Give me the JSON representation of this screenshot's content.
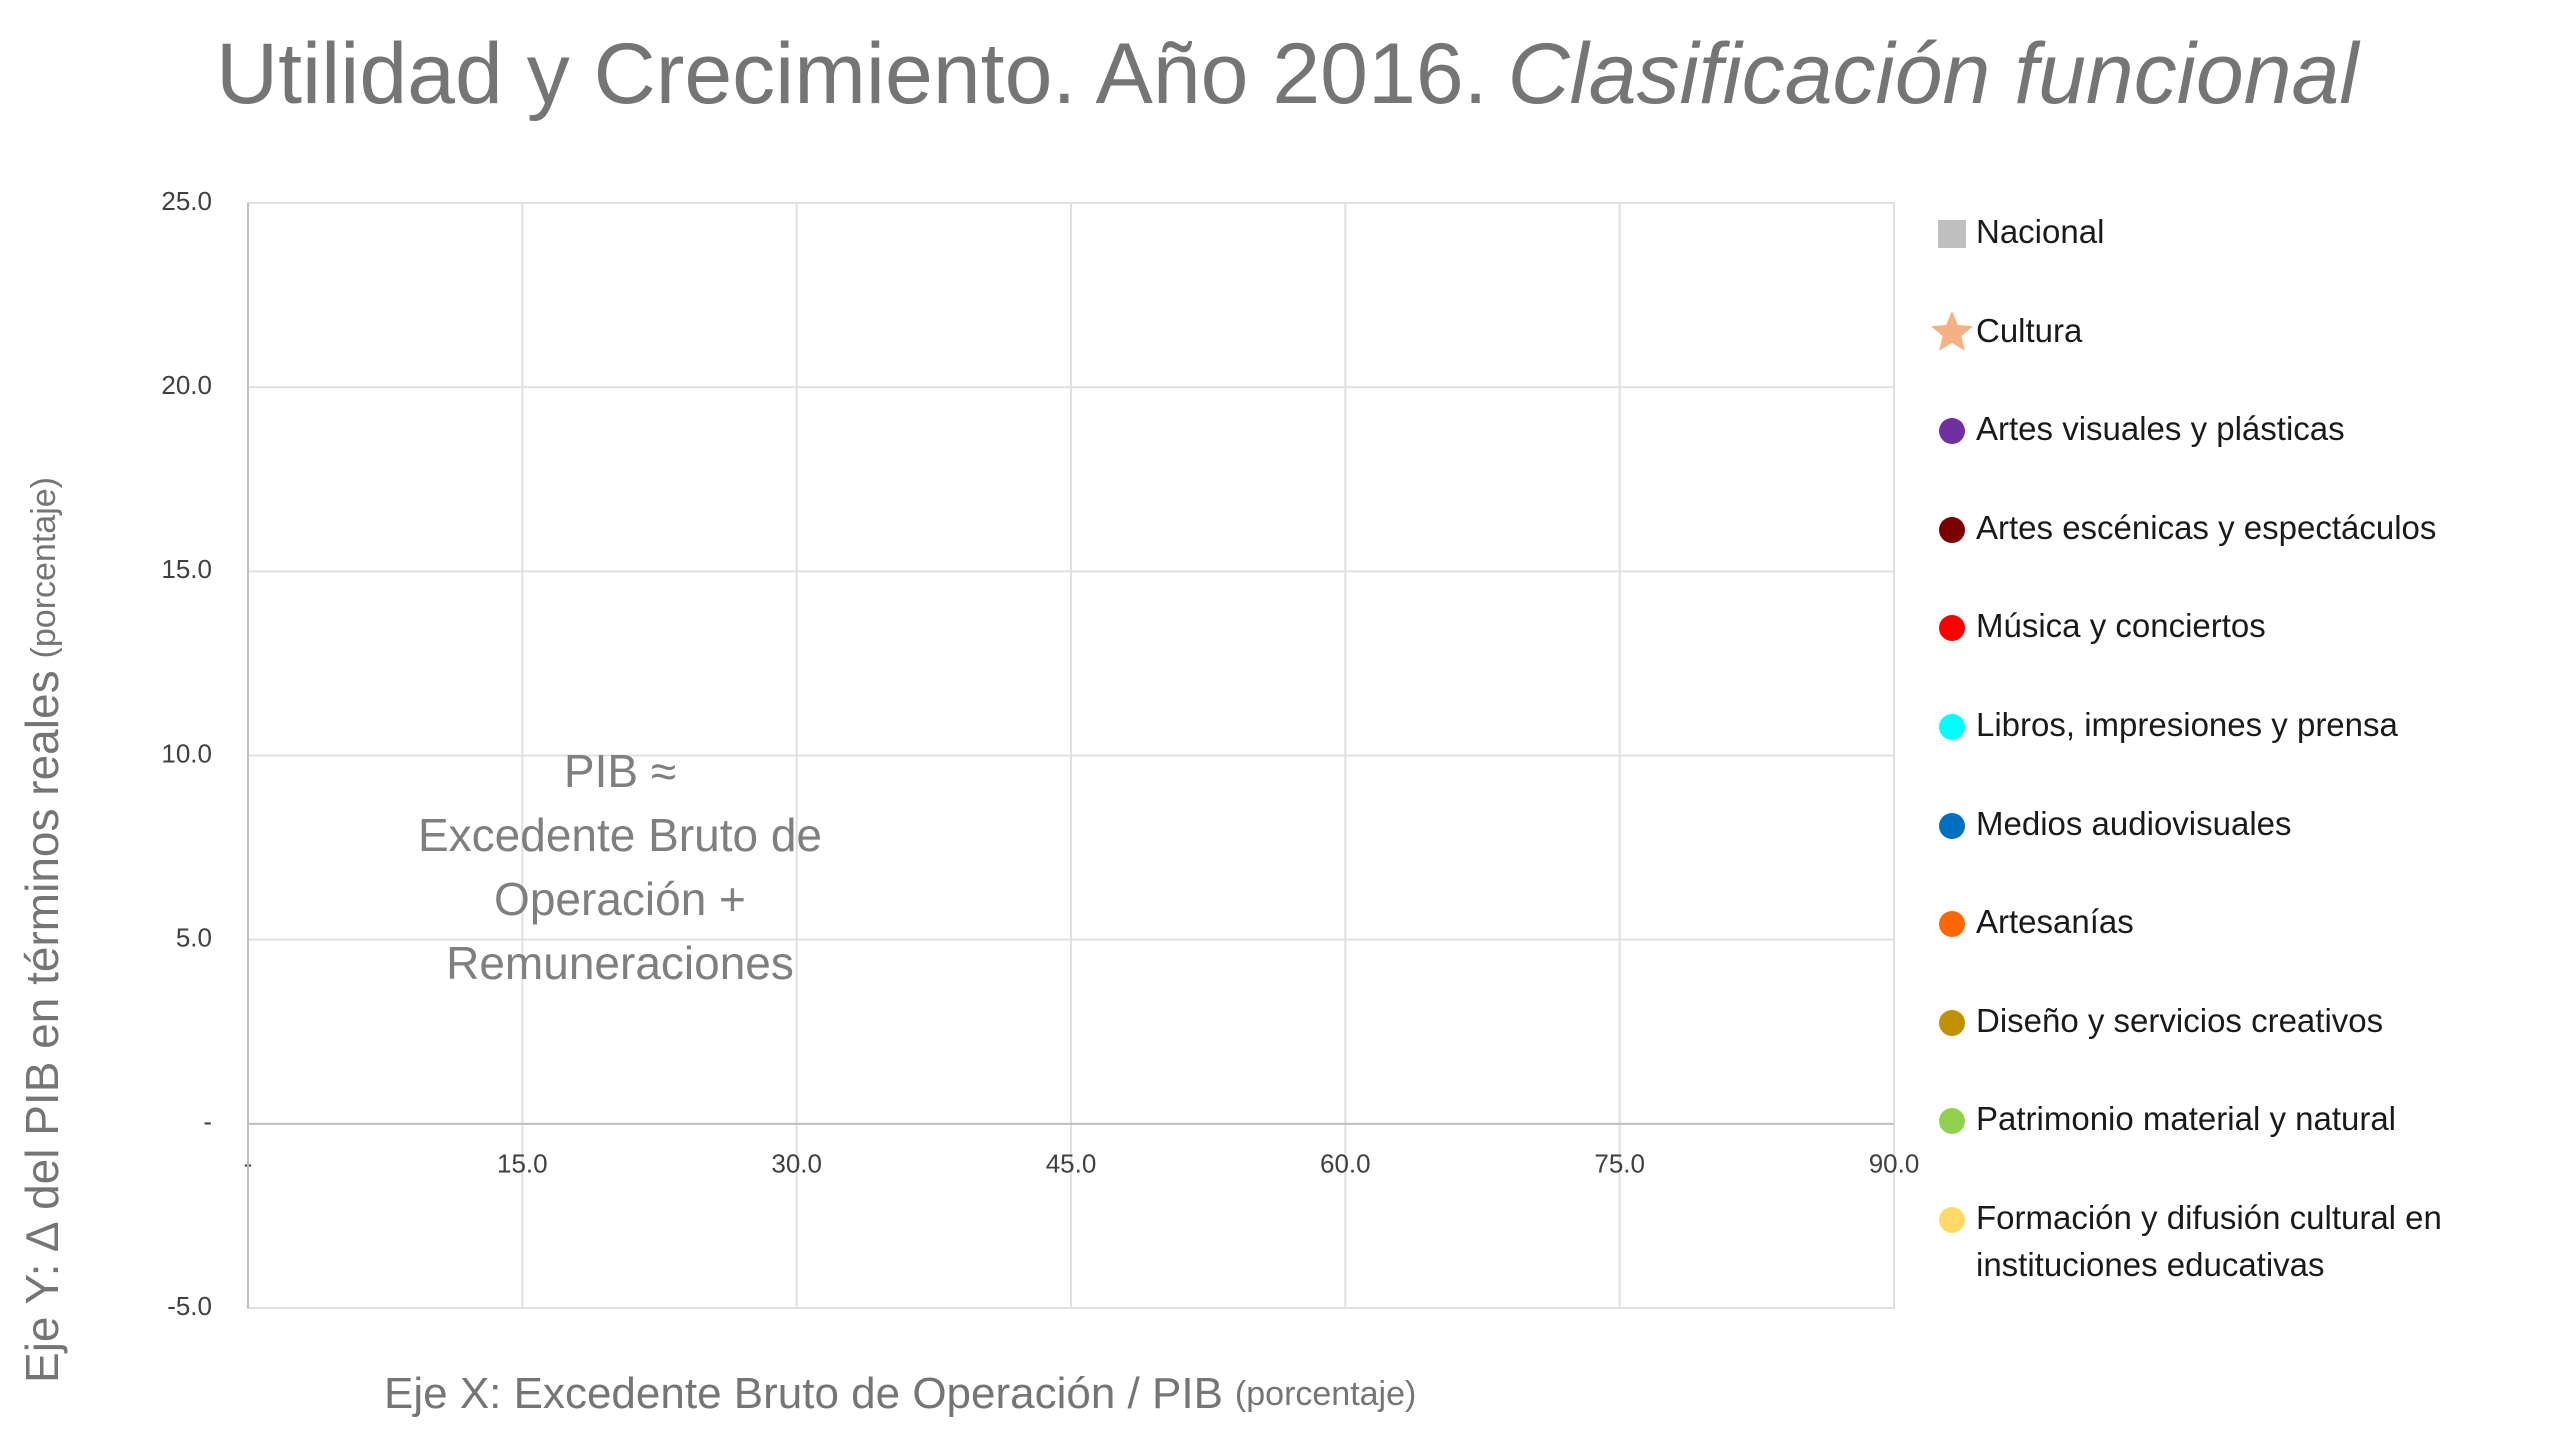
{
  "chart_data": {
    "type": "scatter",
    "title": "Utilidad y Crecimiento. Año 2016.",
    "subtitle": "Clasificación funcional",
    "y_label": "Eje Y: ∆ del PIB en términos reales",
    "y_label_unit": "(porcentaje)",
    "x_label": "Eje X: Excedente Bruto de Operación / PIB",
    "x_label_unit": "(porcentaje)",
    "annotation": [
      "PIB ≈",
      "Excedente Bruto de",
      "Operación +",
      "Remuneraciones"
    ],
    "xlim": [
      0,
      90
    ],
    "ylim": [
      -5,
      25
    ],
    "xticks": [
      {
        "value": 0,
        "label": "-"
      },
      {
        "value": 15,
        "label": "15.0"
      },
      {
        "value": 30,
        "label": "30.0"
      },
      {
        "value": 45,
        "label": "45.0"
      },
      {
        "value": 60,
        "label": "60.0"
      },
      {
        "value": 75,
        "label": "75.0"
      },
      {
        "value": 90,
        "label": "90.0"
      }
    ],
    "yticks": [
      {
        "value": -5,
        "label": "-5.0"
      },
      {
        "value": 0,
        "label": "-"
      },
      {
        "value": 5,
        "label": "5.0"
      },
      {
        "value": 10,
        "label": "10.0"
      },
      {
        "value": 15,
        "label": "15.0"
      },
      {
        "value": 20,
        "label": "20.0"
      },
      {
        "value": 25,
        "label": "25.0"
      }
    ],
    "grid": true,
    "series": [
      {
        "name": "Nacional",
        "color": "#bfbfbf",
        "marker": "square",
        "x": [],
        "y": []
      },
      {
        "name": "Cultura",
        "color": "#f4b183",
        "marker": "star",
        "x": [],
        "y": []
      },
      {
        "name": "Artes visuales y plásticas",
        "color": "#7030a0",
        "marker": "circle",
        "x": [],
        "y": []
      },
      {
        "name": "Artes escénicas y espectáculos",
        "color": "#7b0000",
        "marker": "circle",
        "x": [],
        "y": []
      },
      {
        "name": "Música y conciertos",
        "color": "#ff0000",
        "marker": "circle",
        "x": [],
        "y": []
      },
      {
        "name": "Libros, impresiones y prensa",
        "color": "#00ffff",
        "marker": "circle",
        "x": [],
        "y": []
      },
      {
        "name": "Medios audiovisuales",
        "color": "#0070c0",
        "marker": "circle",
        "x": [],
        "y": []
      },
      {
        "name": "Artesanías",
        "color": "#ff6600",
        "marker": "circle",
        "x": [],
        "y": []
      },
      {
        "name": "Diseño y servicios creativos",
        "color": "#bf9000",
        "marker": "circle",
        "x": [],
        "y": []
      },
      {
        "name": "Patrimonio material y natural",
        "color": "#92d050",
        "marker": "circle",
        "x": [],
        "y": []
      },
      {
        "name": "Formación y difusión cultural en instituciones educativas",
        "color": "#ffd966",
        "marker": "circle",
        "x": [],
        "y": []
      }
    ]
  }
}
